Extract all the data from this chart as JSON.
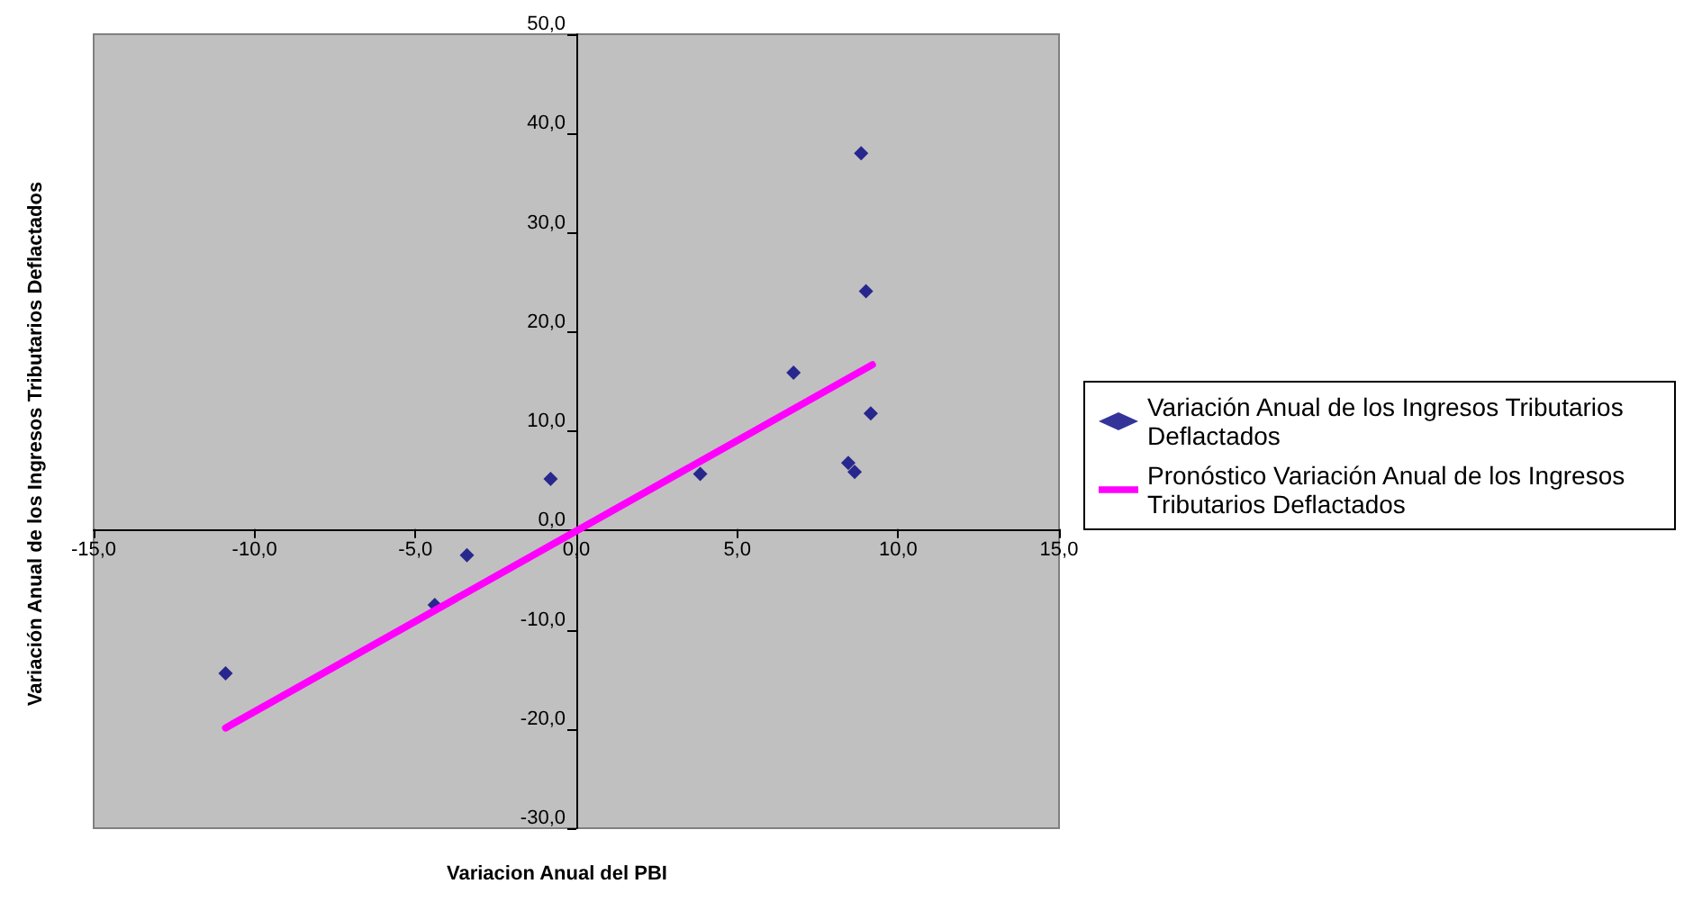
{
  "chart_data": {
    "type": "scatter",
    "xlabel": "Variacion Anual del PBI",
    "ylabel": "Variación Anual de los Ingresos Tributarios Deflactados",
    "series": [
      {
        "name": "Variación Anual de los Ingresos Tributarios Deflactados",
        "color": "#000080",
        "marker": "diamond",
        "x": [
          -10.9,
          -4.4,
          -3.4,
          -0.8,
          3.85,
          6.75,
          8.85,
          9.0,
          9.15,
          8.45,
          8.65
        ],
        "values": [
          -14.4,
          -7.5,
          -2.5,
          5.2,
          5.7,
          15.9,
          38.0,
          24.1,
          11.8,
          6.8,
          5.9
        ]
      },
      {
        "name": "Pronóstico Variación Anual de los Ingresos Tributarios Deflactados",
        "type": "line",
        "color": "#ff00ff",
        "marker": "none",
        "line_style": "solid",
        "x": [
          -10.9,
          9.2
        ],
        "values": [
          -19.9,
          16.7
        ]
      }
    ],
    "xlim": [
      -15,
      15
    ],
    "xticks": [
      {
        "value": -15,
        "label": "-15,0"
      },
      {
        "value": -10,
        "label": "-10,0"
      },
      {
        "value": -5,
        "label": "-5,0"
      },
      {
        "value": 0,
        "label": "0,0"
      },
      {
        "value": 5,
        "label": "5,0"
      },
      {
        "value": 10,
        "label": "10,0"
      },
      {
        "value": 15,
        "label": "15,0"
      }
    ],
    "ylim": [
      -30,
      50
    ],
    "yticks": [
      {
        "value": -30,
        "label": "-30,0"
      },
      {
        "value": -20,
        "label": "-20,0"
      },
      {
        "value": -10,
        "label": "-10,0"
      },
      {
        "value": 0,
        "label": "0,0"
      },
      {
        "value": 10,
        "label": "10,0"
      },
      {
        "value": 20,
        "label": "20,0"
      },
      {
        "value": 30,
        "label": "30,0"
      },
      {
        "value": 40,
        "label": "40,0"
      },
      {
        "value": 50,
        "label": "50,0"
      }
    ],
    "grid": false,
    "legend": "right"
  }
}
